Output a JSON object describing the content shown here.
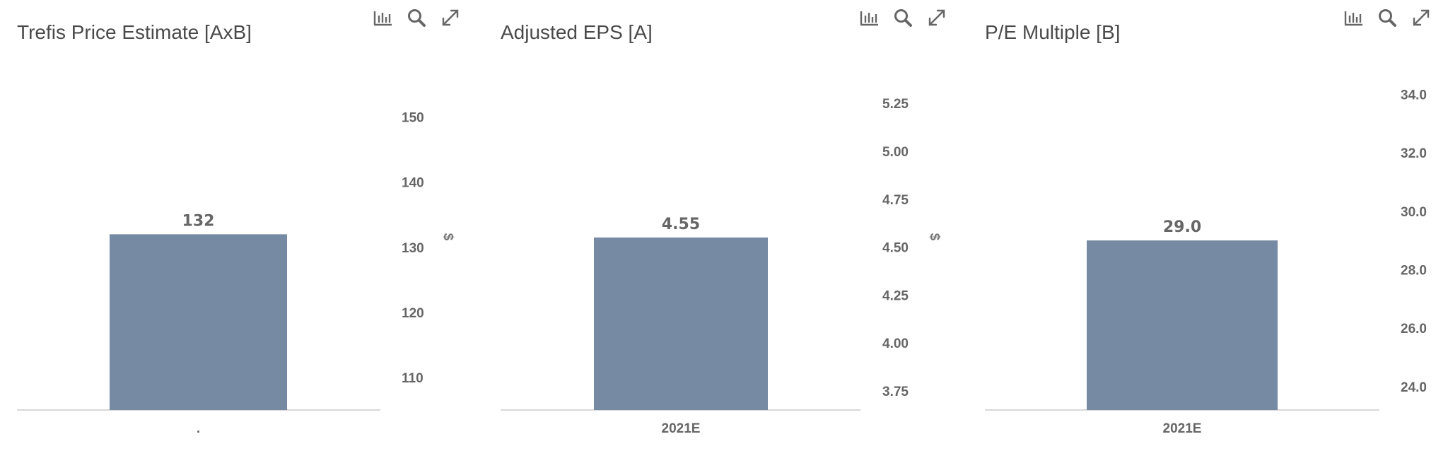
{
  "toolbar": {
    "icons": [
      "bar-chart-icon",
      "search-icon",
      "expand-icon"
    ]
  },
  "colors": {
    "bar": "#768aa3",
    "axis": "#cccccc",
    "text": "#666666"
  },
  "chart_data": [
    {
      "type": "bar",
      "title": "Trefis Price Estimate [AxB]",
      "categories": [
        "."
      ],
      "values": [
        132
      ],
      "value_labels": [
        "132"
      ],
      "ylabel": "$",
      "yticks": [
        "110",
        "120",
        "130",
        "140",
        "150"
      ],
      "ylim": [
        105,
        158
      ]
    },
    {
      "type": "bar",
      "title": "Adjusted EPS [A]",
      "categories": [
        "2021E"
      ],
      "values": [
        4.55
      ],
      "value_labels": [
        "4.55"
      ],
      "ylabel": "$",
      "yticks": [
        "3.75",
        "4.00",
        "4.25",
        "4.50",
        "4.75",
        "5.00",
        "5.25"
      ],
      "ylim": [
        3.65,
        5.45
      ]
    },
    {
      "type": "bar",
      "title": "P/E Multiple [B]",
      "categories": [
        "2021E"
      ],
      "values": [
        29.0
      ],
      "value_labels": [
        "29.0"
      ],
      "ylabel": "",
      "yticks": [
        "24.0",
        "26.0",
        "28.0",
        "30.0",
        "32.0",
        "34.0"
      ],
      "ylim": [
        23.2,
        35.0
      ]
    }
  ]
}
